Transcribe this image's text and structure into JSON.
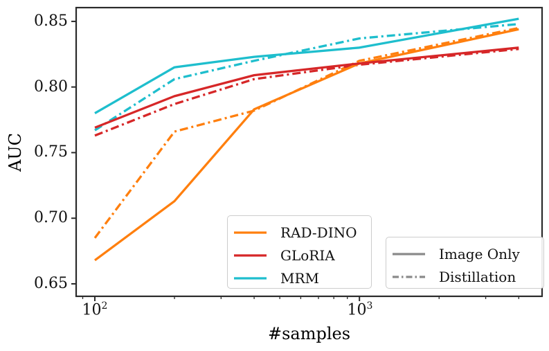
{
  "chart_data": {
    "type": "line",
    "title": "",
    "xlabel": "#samples",
    "ylabel": "AUC",
    "x_scale": "log",
    "x": [
      100,
      200,
      400,
      1000,
      4000
    ],
    "axes": {
      "xlim": [
        85,
        4900
      ],
      "ylim": [
        0.6405,
        0.8605
      ],
      "y_ticks": [
        0.65,
        0.7,
        0.75,
        0.8,
        0.85
      ],
      "y_tick_labels": [
        "0.65",
        "0.70",
        "0.75",
        "0.80",
        "0.85"
      ],
      "x_major_ticks": [
        100,
        1000
      ],
      "x_major_tick_labels": [
        {
          "base": "10",
          "exp": "2"
        },
        {
          "base": "10",
          "exp": "3"
        }
      ],
      "x_minor_ticks": [
        90,
        200,
        300,
        400,
        500,
        600,
        700,
        800,
        900,
        2000,
        3000,
        4000
      ],
      "grid": false
    },
    "series": [
      {
        "name": "RAD-DINO",
        "variant": "Distillation",
        "color": "#ff7f0e",
        "linestyle": "dashdot",
        "values": [
          0.685,
          0.766,
          0.782,
          0.82,
          0.845
        ]
      },
      {
        "name": "GLoRIA",
        "variant": "Distillation",
        "color": "#d62728",
        "linestyle": "dashdot",
        "values": [
          0.763,
          0.787,
          0.806,
          0.817,
          0.829
        ]
      },
      {
        "name": "MRM",
        "variant": "Distillation",
        "color": "#1ebecd",
        "linestyle": "dashdot",
        "values": [
          0.767,
          0.806,
          0.82,
          0.837,
          0.848
        ]
      },
      {
        "name": "RAD-DINO",
        "variant": "Image Only",
        "color": "#ff7f0e",
        "linestyle": "solid",
        "values": [
          0.668,
          0.713,
          0.783,
          0.818,
          0.844
        ]
      },
      {
        "name": "GLoRIA",
        "variant": "Image Only",
        "color": "#d62728",
        "linestyle": "solid",
        "values": [
          0.769,
          0.793,
          0.809,
          0.818,
          0.83
        ]
      },
      {
        "name": "MRM",
        "variant": "Image Only",
        "color": "#1ebecd",
        "linestyle": "solid",
        "values": [
          0.78,
          0.815,
          0.823,
          0.83,
          0.852
        ]
      }
    ],
    "legends": {
      "models": {
        "entries": [
          {
            "label": "RAD-DINO",
            "color": "#ff7f0e"
          },
          {
            "label": "GLoRIA",
            "color": "#d62728"
          },
          {
            "label": "MRM",
            "color": "#1ebecd"
          }
        ]
      },
      "styles": {
        "line_color": "#8a8a8a",
        "entries": [
          {
            "label": "Image Only",
            "dash": "solid"
          },
          {
            "label": "Distillation",
            "dash": "dashdot"
          }
        ]
      }
    },
    "dash_patterns": {
      "solid": "",
      "dashdot": "12 5 3 5"
    },
    "spine_color": "#2a2a2a"
  }
}
